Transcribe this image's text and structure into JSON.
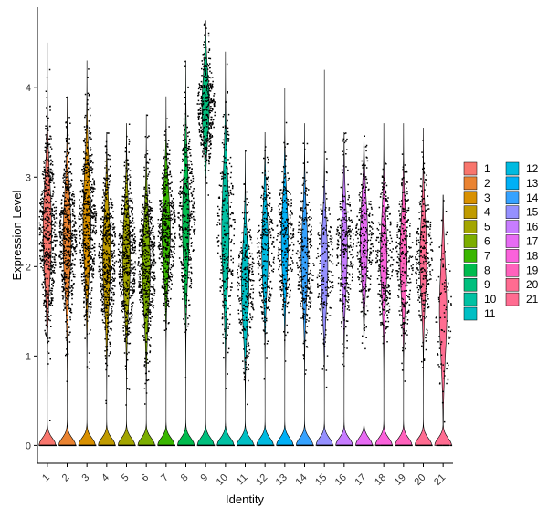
{
  "chart_data": {
    "type": "violin",
    "xlabel": "Identity",
    "ylabel": "Expression Level",
    "ylim": [
      -0.2,
      4.9
    ],
    "yticks": [
      0,
      1,
      2,
      3,
      4
    ],
    "categories": [
      "1",
      "2",
      "3",
      "4",
      "5",
      "6",
      "7",
      "8",
      "9",
      "10",
      "11",
      "12",
      "13",
      "14",
      "15",
      "16",
      "17",
      "18",
      "19",
      "20",
      "21"
    ],
    "colors": [
      "#F8766D",
      "#EA8331",
      "#D89000",
      "#C09B00",
      "#A3A500",
      "#7CAE00",
      "#39B600",
      "#00BB4E",
      "#00BF7D",
      "#00C1A3",
      "#00BFC4",
      "#00BAE0",
      "#00B0F6",
      "#35A2FF",
      "#9590FF",
      "#C77CFF",
      "#E76BF3",
      "#FA62DB",
      "#FF62BC",
      "#FF6C91",
      "#FF6C91"
    ],
    "series": [
      {
        "max": 4.5,
        "center": 2.4,
        "spread": 0.55,
        "zero_height": 0.25,
        "points": 6
      },
      {
        "max": 3.9,
        "center": 2.3,
        "spread": 0.5,
        "zero_height": 0.3,
        "points": 6
      },
      {
        "max": 4.3,
        "center": 2.5,
        "spread": 0.55,
        "zero_height": 0.35,
        "points": 6
      },
      {
        "max": 3.5,
        "center": 2.1,
        "spread": 0.5,
        "zero_height": 0.35,
        "points": 6
      },
      {
        "max": 3.6,
        "center": 2.1,
        "spread": 0.5,
        "zero_height": 0.4,
        "points": 6
      },
      {
        "max": 3.7,
        "center": 2.0,
        "spread": 0.5,
        "zero_height": 0.35,
        "points": 6
      },
      {
        "max": 3.9,
        "center": 2.4,
        "spread": 0.45,
        "zero_height": 0.25,
        "points": 5
      },
      {
        "max": 4.3,
        "center": 2.5,
        "spread": 0.55,
        "zero_height": 0.5,
        "points": 4
      },
      {
        "max": 4.75,
        "center": 3.8,
        "spread": 0.35,
        "zero_height": 0.4,
        "points": 4
      },
      {
        "max": 4.4,
        "center": 2.4,
        "spread": 0.6,
        "zero_height": 0.4,
        "points": 3
      },
      {
        "max": 3.3,
        "center": 1.8,
        "spread": 0.45,
        "zero_height": 0.4,
        "points": 3
      },
      {
        "max": 3.5,
        "center": 2.2,
        "spread": 0.45,
        "zero_height": 0.6,
        "points": 3
      },
      {
        "max": 4.0,
        "center": 2.3,
        "spread": 0.45,
        "zero_height": 0.5,
        "points": 3
      },
      {
        "max": 3.6,
        "center": 2.1,
        "spread": 0.45,
        "zero_height": 0.55,
        "points": 3
      },
      {
        "max": 4.2,
        "center": 2.0,
        "spread": 0.45,
        "zero_height": 0.5,
        "points": 2
      },
      {
        "max": 3.5,
        "center": 2.2,
        "spread": 0.45,
        "zero_height": 0.6,
        "points": 3
      },
      {
        "max": 4.75,
        "center": 2.3,
        "spread": 0.45,
        "zero_height": 0.4,
        "points": 3
      },
      {
        "max": 3.6,
        "center": 2.1,
        "spread": 0.45,
        "zero_height": 0.55,
        "points": 3
      },
      {
        "max": 3.6,
        "center": 2.1,
        "spread": 0.45,
        "zero_height": 0.45,
        "points": 3
      },
      {
        "max": 3.55,
        "center": 2.1,
        "spread": 0.45,
        "zero_height": 0.5,
        "points": 3
      },
      {
        "max": 2.8,
        "center": 1.5,
        "spread": 0.5,
        "zero_height": 0.4,
        "points": 1
      }
    ],
    "legend": {
      "position": "right",
      "columns": 2
    },
    "grid": false
  }
}
